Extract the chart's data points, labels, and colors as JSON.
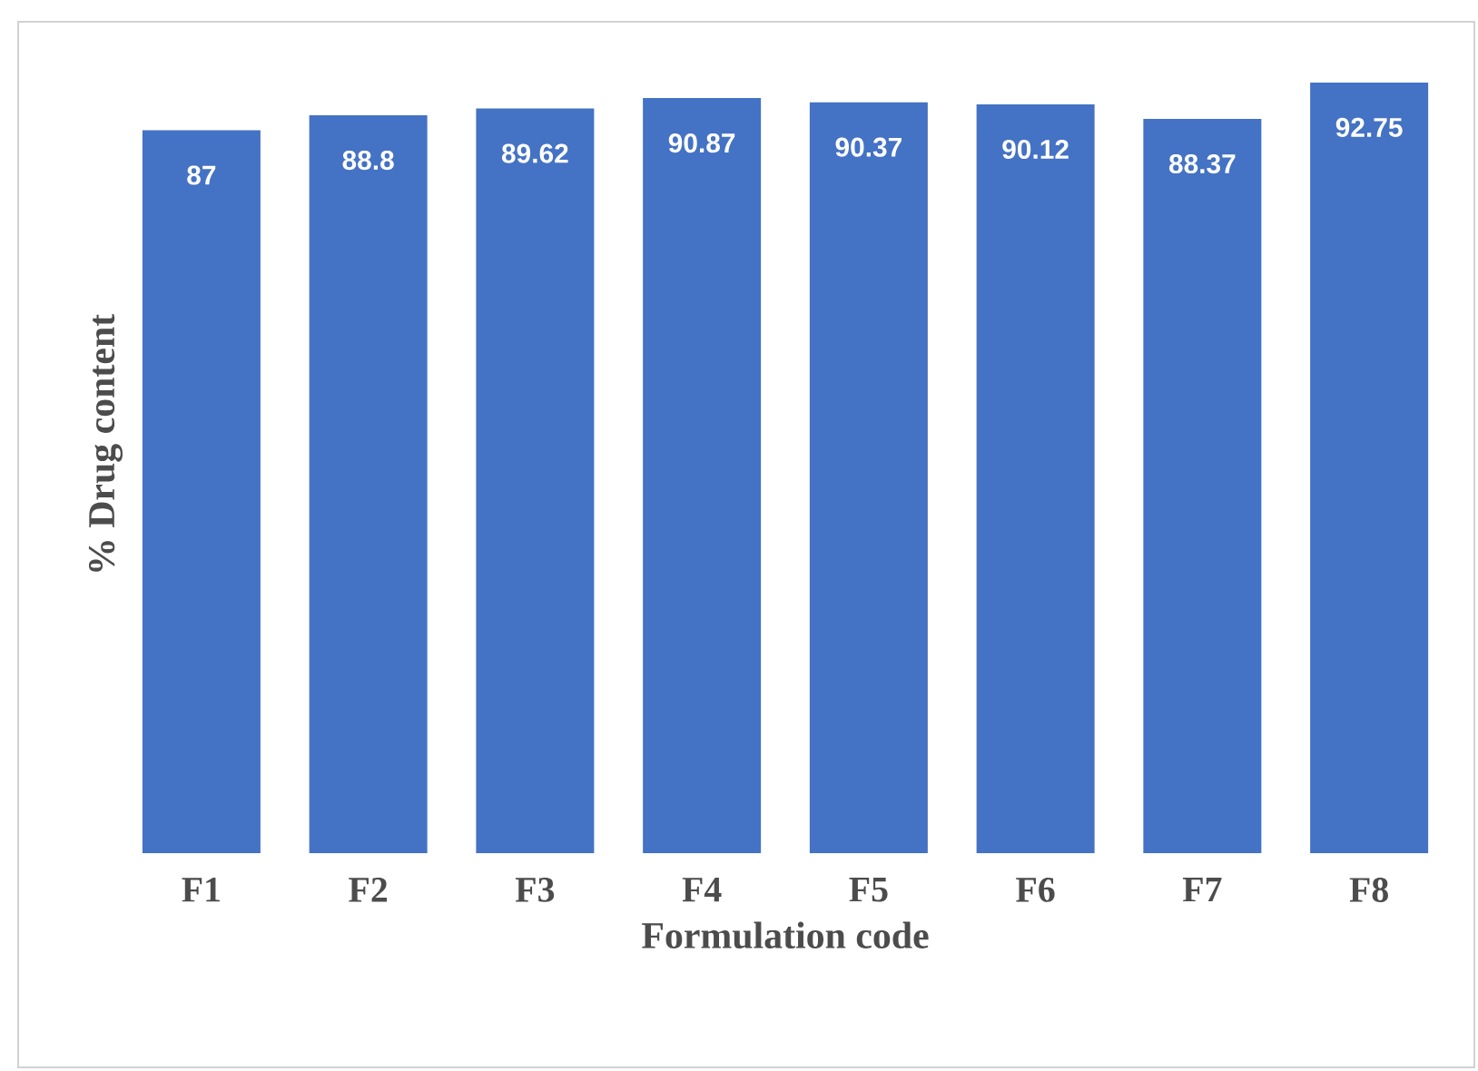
{
  "chart_data": {
    "type": "bar",
    "xlabel": "Formulation code",
    "ylabel": "% Drug content",
    "categories": [
      "F1",
      "F2",
      "F3",
      "F4",
      "F5",
      "F6",
      "F7",
      "F8"
    ],
    "values": [
      87,
      88.8,
      89.62,
      90.87,
      90.37,
      90.12,
      88.37,
      92.75
    ],
    "color": "#4472c4",
    "tick_labels": "x",
    "data_labels": true
  }
}
